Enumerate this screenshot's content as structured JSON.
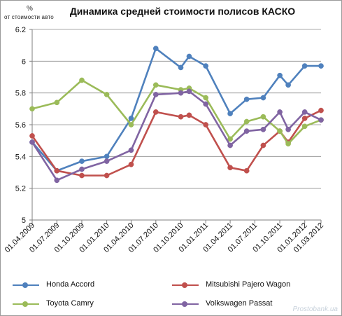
{
  "chart_data": {
    "type": "line",
    "title": "Динамика средней стоимости полисов КАСКО",
    "y_unit": "%",
    "ylabel": "от стоимости авто",
    "ylim": [
      5,
      6.2
    ],
    "yticks": [
      5,
      5.2,
      5.4,
      5.6,
      5.8,
      6,
      6.2
    ],
    "ytick_labels": [
      "5",
      "5.2",
      "5.4",
      "5.6",
      "5.8",
      "6",
      "6.2"
    ],
    "grid": true,
    "legend_position": "bottom",
    "x_tick_labels": [
      "01.04.2009",
      "01.07.2009",
      "01.10.2009",
      "01.01.2010",
      "01.04.2010",
      "01.07.2010",
      "01.10.2010",
      "01.01.2011",
      "01.04.2011",
      "01.07.2011",
      "01.10.2011",
      "01.01.2012",
      "01.03.2012"
    ],
    "x": [
      "2009-04-01",
      "2009-06-01",
      "2009-08-01",
      "2009-11-01",
      "2010-01-01",
      "2010-03-01",
      "2010-05-01",
      "2010-07-01",
      "2010-09-01",
      "2010-10-01",
      "2010-12-01",
      "2011-01-01",
      "2011-03-01",
      "2011-05-01",
      "2011-07-01",
      "2011-09-01",
      "2011-10-01",
      "2011-11-01",
      "2012-01-01",
      "2012-03-01"
    ],
    "series": [
      {
        "name": "Honda Accord",
        "color": "#4f81bd",
        "points": [
          [
            "2009-04-01",
            5.49
          ],
          [
            "2009-07-01",
            5.31
          ],
          [
            "2009-10-01",
            5.37
          ],
          [
            "2010-01-01",
            5.4
          ],
          [
            "2010-04-01",
            5.64
          ],
          [
            "2010-07-01",
            6.08
          ],
          [
            "2010-10-01",
            5.96
          ],
          [
            "2010-11-01",
            6.03
          ],
          [
            "2011-01-01",
            5.97
          ],
          [
            "2011-04-01",
            5.67
          ],
          [
            "2011-06-01",
            5.76
          ],
          [
            "2011-08-01",
            5.77
          ],
          [
            "2011-10-01",
            5.91
          ],
          [
            "2011-11-01",
            5.85
          ],
          [
            "2012-01-01",
            5.97
          ],
          [
            "2012-03-01",
            5.97
          ]
        ]
      },
      {
        "name": "Mitsubishi Pajero Wagon",
        "color": "#c0504d",
        "points": [
          [
            "2009-04-01",
            5.53
          ],
          [
            "2009-07-01",
            5.31
          ],
          [
            "2009-10-01",
            5.28
          ],
          [
            "2010-01-01",
            5.28
          ],
          [
            "2010-04-01",
            5.35
          ],
          [
            "2010-07-01",
            5.68
          ],
          [
            "2010-10-01",
            5.65
          ],
          [
            "2010-11-01",
            5.66
          ],
          [
            "2011-01-01",
            5.6
          ],
          [
            "2011-04-01",
            5.33
          ],
          [
            "2011-06-01",
            5.31
          ],
          [
            "2011-08-01",
            5.47
          ],
          [
            "2011-10-01",
            5.56
          ],
          [
            "2011-11-01",
            5.49
          ],
          [
            "2012-01-01",
            5.64
          ],
          [
            "2012-03-01",
            5.69
          ]
        ]
      },
      {
        "name": "Toyota Camry",
        "color": "#9bbb59",
        "points": [
          [
            "2009-04-01",
            5.7
          ],
          [
            "2009-07-01",
            5.74
          ],
          [
            "2009-10-01",
            5.88
          ],
          [
            "2010-01-01",
            5.79
          ],
          [
            "2010-04-01",
            5.6
          ],
          [
            "2010-07-01",
            5.85
          ],
          [
            "2010-10-01",
            5.82
          ],
          [
            "2010-11-01",
            5.83
          ],
          [
            "2011-01-01",
            5.77
          ],
          [
            "2011-04-01",
            5.51
          ],
          [
            "2011-06-01",
            5.62
          ],
          [
            "2011-08-01",
            5.65
          ],
          [
            "2011-10-01",
            5.56
          ],
          [
            "2011-11-01",
            5.48
          ],
          [
            "2012-01-01",
            5.59
          ],
          [
            "2012-03-01",
            5.63
          ]
        ]
      },
      {
        "name": "Volkswagen  Passat",
        "color": "#8064a2",
        "points": [
          [
            "2009-04-01",
            5.49
          ],
          [
            "2009-07-01",
            5.25
          ],
          [
            "2009-10-01",
            5.32
          ],
          [
            "2010-01-01",
            5.37
          ],
          [
            "2010-04-01",
            5.44
          ],
          [
            "2010-07-01",
            5.79
          ],
          [
            "2010-10-01",
            5.8
          ],
          [
            "2010-11-01",
            5.81
          ],
          [
            "2011-01-01",
            5.73
          ],
          [
            "2011-04-01",
            5.47
          ],
          [
            "2011-06-01",
            5.56
          ],
          [
            "2011-08-01",
            5.57
          ],
          [
            "2011-10-01",
            5.68
          ],
          [
            "2011-11-01",
            5.57
          ],
          [
            "2012-01-01",
            5.68
          ],
          [
            "2012-03-01",
            5.63
          ]
        ]
      }
    ]
  },
  "watermark": "Prostobank.ua"
}
